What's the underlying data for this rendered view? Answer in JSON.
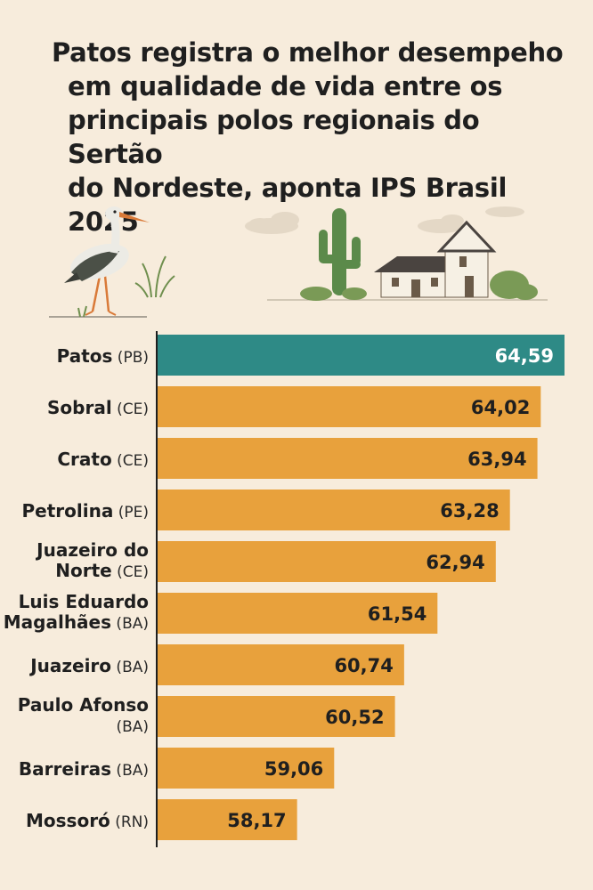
{
  "title_lines": [
    "Patos registra o melhor desempeho",
    "em qualidade de vida entre os",
    "principais polos regionais do Sertão",
    "do Nordeste, aponta IPS Brasil 2025"
  ],
  "colors": {
    "background": "#f7ecdc",
    "highlight_bar": "#2e8a86",
    "bar": "#e8a13c",
    "axis": "#1f1f1f"
  },
  "chart_data": {
    "type": "bar",
    "orientation": "horizontal",
    "categories": [
      {
        "lines": [
          {
            "name": "Patos",
            "state": "(PB)"
          }
        ]
      },
      {
        "lines": [
          {
            "name": "Sobral",
            "state": "(CE)"
          }
        ]
      },
      {
        "lines": [
          {
            "name": "Crato",
            "state": "(CE)"
          }
        ]
      },
      {
        "lines": [
          {
            "name": "Petrolina",
            "state": "(PE)"
          }
        ]
      },
      {
        "lines": [
          {
            "name": "Juazeiro do",
            "state": ""
          },
          {
            "name": "Norte",
            "state": "(CE)"
          }
        ]
      },
      {
        "lines": [
          {
            "name": "Luis Eduardo",
            "state": ""
          },
          {
            "name": "Magalhães",
            "state": "(BA)"
          }
        ]
      },
      {
        "lines": [
          {
            "name": "Juazeiro",
            "state": "(BA)"
          }
        ]
      },
      {
        "lines": [
          {
            "name": "Paulo Afonso",
            "state": ""
          },
          {
            "name": "",
            "state": "(BA)"
          }
        ]
      },
      {
        "lines": [
          {
            "name": "Barreiras",
            "state": "(BA)"
          }
        ]
      },
      {
        "lines": [
          {
            "name": "Mossoró",
            "state": "(RN)"
          }
        ]
      }
    ],
    "values": [
      64.59,
      64.02,
      63.94,
      63.28,
      62.94,
      61.54,
      60.74,
      60.52,
      59.06,
      58.17
    ],
    "value_labels": [
      "64,59",
      "64,02",
      "63,94",
      "63,28",
      "62,94",
      "61,54",
      "60,74",
      "60,52",
      "59,06",
      "58,17"
    ],
    "highlight_index": 0,
    "xlim": [
      54.8,
      64.59
    ],
    "title": "",
    "xlabel": "",
    "ylabel": "",
    "grid": false,
    "legend": "none"
  }
}
